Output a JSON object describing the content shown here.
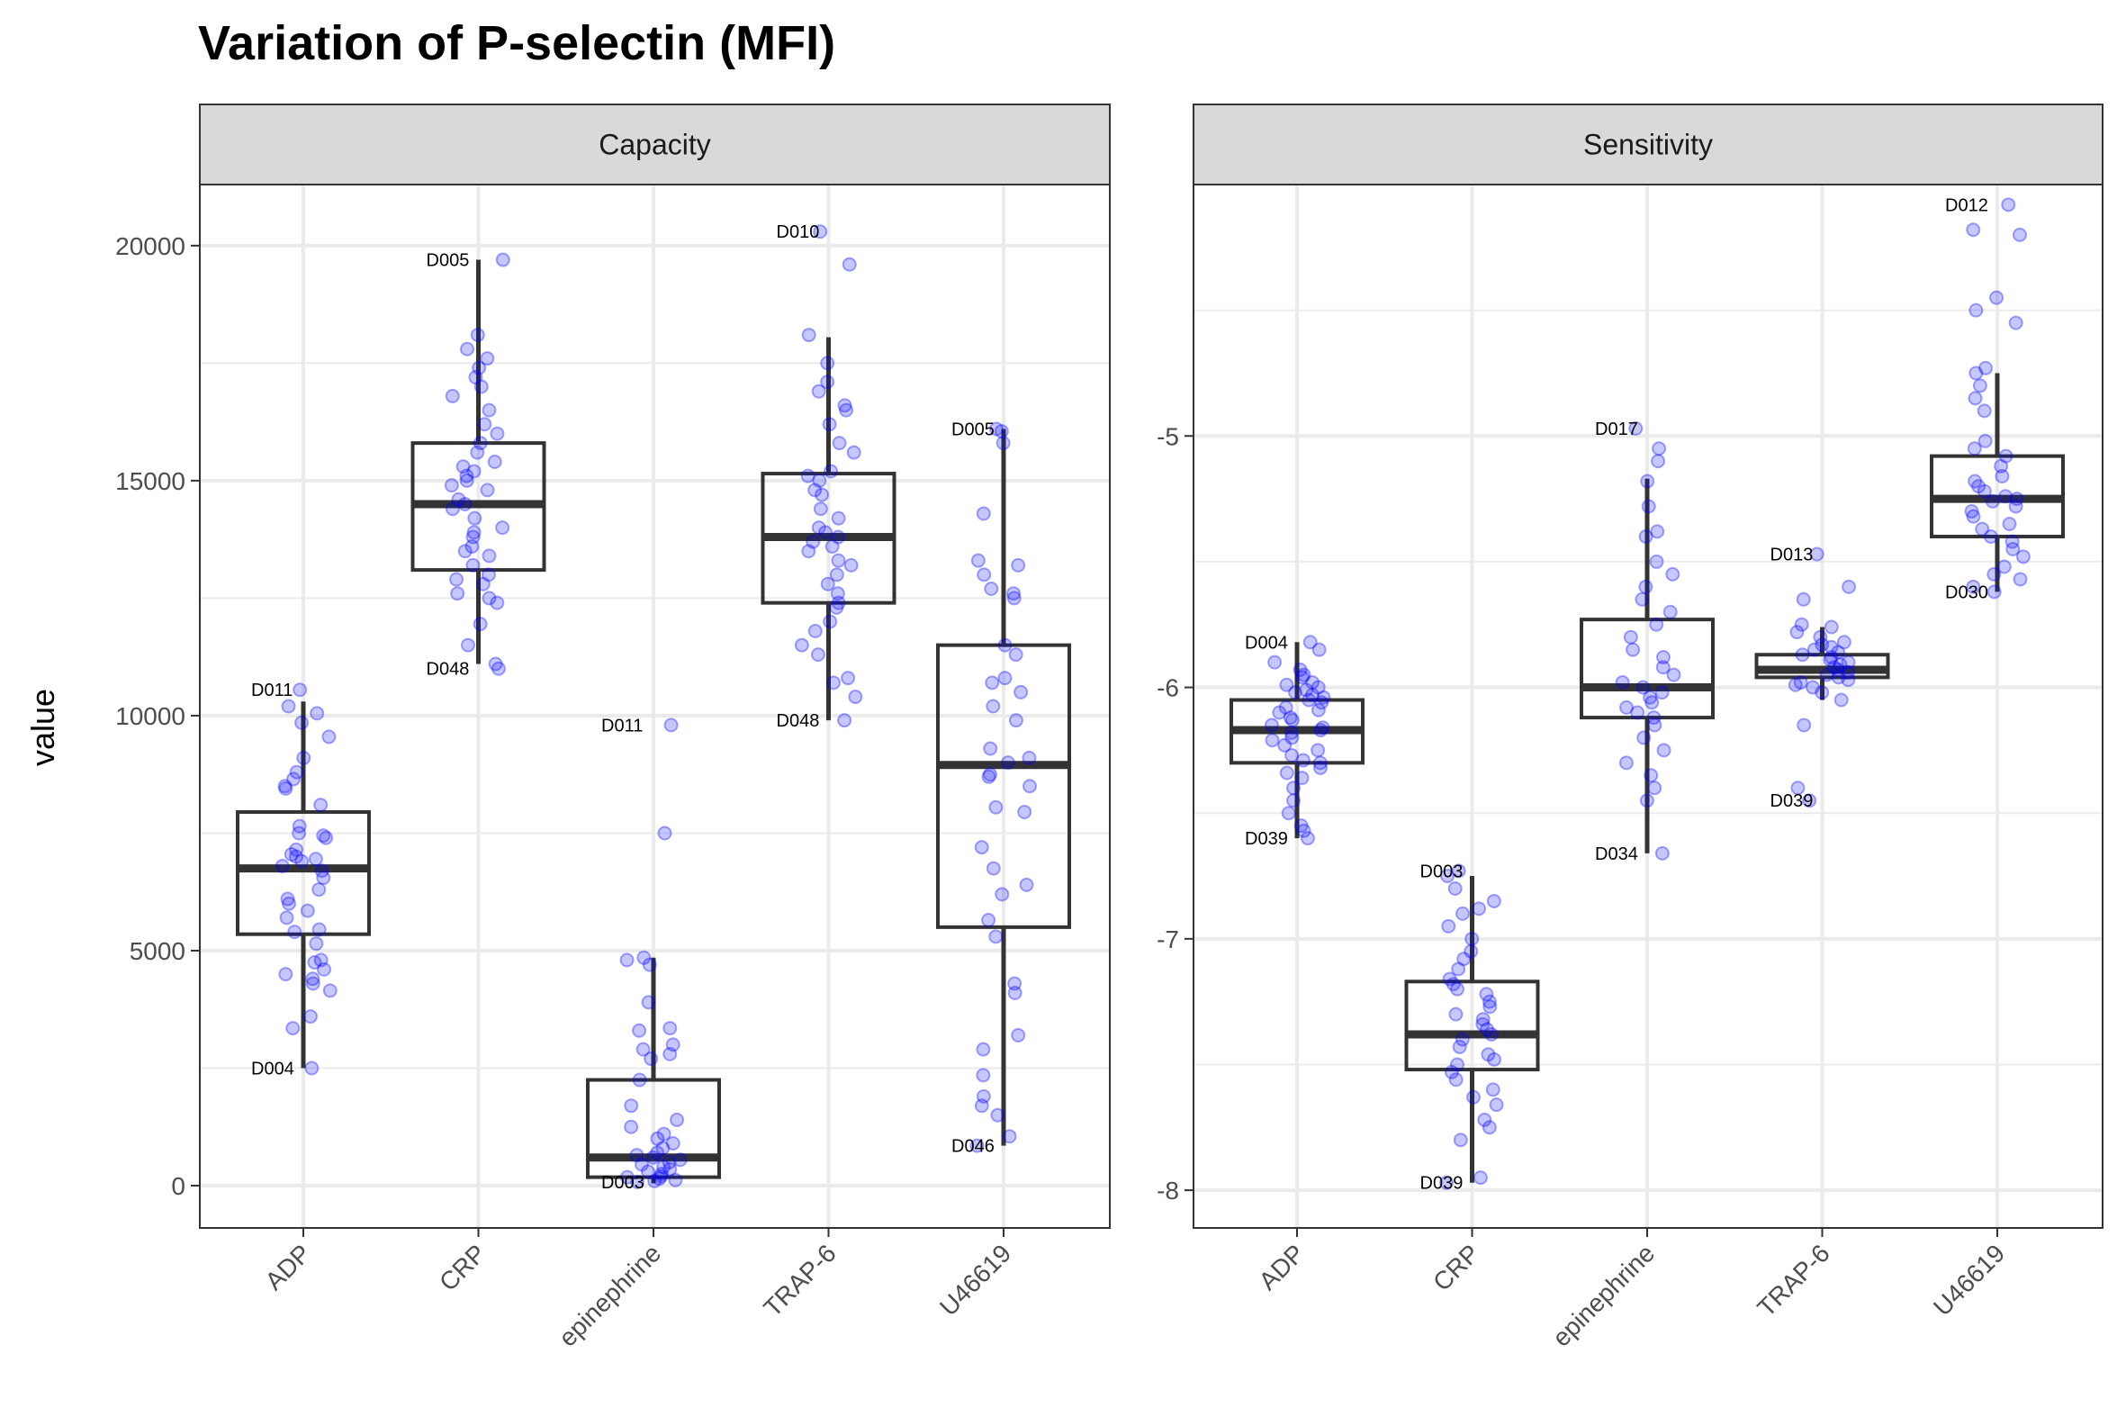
{
  "chart_data": {
    "type": "box",
    "title": "Variation of P-selectin (MFI)",
    "xlabel": "",
    "ylabel": "value",
    "categories": [
      "ADP",
      "CRP",
      "epinephrine",
      "TRAP-6",
      "U46619"
    ],
    "colors": {
      "points": "#0000ff",
      "box": "#333333",
      "grid": "#ebebeb",
      "strip": "#d9d9d9",
      "border": "#333333"
    },
    "grid": true,
    "facets": [
      {
        "name": "Capacity",
        "ylim": [
          -900,
          21300
        ],
        "yticks": [
          0,
          5000,
          10000,
          15000,
          20000
        ],
        "yticklabels": [
          "0",
          "5000",
          "10000",
          "15000",
          "20000"
        ],
        "boxes": [
          {
            "category": "ADP",
            "q1": 5350,
            "median": 6750,
            "q3": 7950,
            "whisker_low": 2500,
            "whisker_high": 10300,
            "points": [
              2500,
              3350,
              3600,
              4150,
              4300,
              4400,
              4500,
              4600,
              4750,
              4800,
              5150,
              5400,
              5450,
              5700,
              5850,
              6000,
              6100,
              6300,
              6550,
              6700,
              6800,
              6900,
              6950,
              7000,
              7050,
              7150,
              7400,
              7450,
              7500,
              7650,
              8100,
              8450,
              8500,
              8650,
              8800,
              9100,
              9550,
              9850,
              10050,
              10200,
              10550
            ]
          },
          {
            "category": "CRP",
            "q1": 13100,
            "median": 14500,
            "q3": 15800,
            "whisker_low": 11100,
            "whisker_high": 19700,
            "points": [
              11000,
              11100,
              11500,
              11950,
              12400,
              12500,
              12600,
              12800,
              12900,
              13000,
              13200,
              13400,
              13500,
              13600,
              13800,
              13900,
              14000,
              14200,
              14400,
              14500,
              14600,
              14800,
              14900,
              15000,
              15100,
              15200,
              15300,
              15400,
              15600,
              15800,
              16000,
              16200,
              16500,
              16800,
              17000,
              17200,
              17400,
              17600,
              17800,
              18100,
              19700
            ]
          },
          {
            "category": "epinephrine",
            "q1": 180,
            "median": 600,
            "q3": 2250,
            "whisker_low": 50,
            "whisker_high": 4850,
            "points": [
              80,
              100,
              120,
              150,
              180,
              200,
              250,
              300,
              350,
              400,
              450,
              500,
              550,
              600,
              650,
              700,
              800,
              900,
              1000,
              1100,
              1250,
              1400,
              1700,
              2250,
              2700,
              2800,
              2900,
              3000,
              3300,
              3350,
              3900,
              4700,
              4800,
              4850,
              7500,
              9800
            ]
          },
          {
            "category": "TRAP-6",
            "q1": 12400,
            "median": 13800,
            "q3": 15150,
            "whisker_low": 9900,
            "whisker_high": 18050,
            "points": [
              9900,
              10400,
              10700,
              10800,
              11300,
              11500,
              11800,
              12000,
              12300,
              12400,
              12600,
              12800,
              13000,
              13200,
              13300,
              13500,
              13600,
              13700,
              13800,
              13900,
              14000,
              14200,
              14400,
              14700,
              14800,
              15000,
              15100,
              15200,
              15600,
              15800,
              16200,
              16500,
              16600,
              16900,
              17100,
              17500,
              18100,
              19600,
              20300
            ]
          },
          {
            "category": "U46619",
            "q1": 5500,
            "median": 8950,
            "q3": 11500,
            "whisker_low": 850,
            "whisker_high": 16100,
            "points": [
              850,
              1050,
              1500,
              1700,
              1900,
              2350,
              2900,
              3200,
              4100,
              4300,
              5300,
              5650,
              6200,
              6400,
              6750,
              7200,
              7950,
              8050,
              8500,
              8700,
              8750,
              9000,
              9100,
              9300,
              9900,
              10200,
              10500,
              10700,
              10800,
              11300,
              11500,
              12500,
              12600,
              12700,
              13000,
              13200,
              13300,
              14300,
              15800,
              16050,
              16100
            ]
          }
        ],
        "labels": [
          {
            "category": "ADP",
            "value": 10550,
            "text": "D011"
          },
          {
            "category": "ADP",
            "value": 2500,
            "text": "D004"
          },
          {
            "category": "CRP",
            "value": 19700,
            "text": "D005"
          },
          {
            "category": "CRP",
            "value": 11000,
            "text": "D048"
          },
          {
            "category": "epinephrine",
            "value": 9800,
            "text": "D011"
          },
          {
            "category": "epinephrine",
            "value": 80,
            "text": "D003"
          },
          {
            "category": "TRAP-6",
            "value": 20300,
            "text": "D010"
          },
          {
            "category": "TRAP-6",
            "value": 9900,
            "text": "D048"
          },
          {
            "category": "U46619",
            "value": 16100,
            "text": "D005"
          },
          {
            "category": "U46619",
            "value": 850,
            "text": "D046"
          }
        ]
      },
      {
        "name": "Sensitivity",
        "ylim": [
          -8.15,
          -4.0
        ],
        "yticks": [
          -8,
          -7,
          -6,
          -5
        ],
        "yticklabels": [
          "-8",
          "-7",
          "-6",
          "-5"
        ],
        "boxes": [
          {
            "category": "ADP",
            "q1": -6.3,
            "median": -6.17,
            "q3": -6.05,
            "whisker_low": -6.6,
            "whisker_high": -5.82,
            "points": [
              -6.6,
              -6.57,
              -6.55,
              -6.5,
              -6.45,
              -6.4,
              -6.36,
              -6.34,
              -6.32,
              -6.3,
              -6.29,
              -6.27,
              -6.25,
              -6.23,
              -6.21,
              -6.2,
              -6.18,
              -6.17,
              -6.16,
              -6.15,
              -6.13,
              -6.12,
              -6.1,
              -6.09,
              -6.08,
              -6.06,
              -6.05,
              -6.04,
              -6.03,
              -6.02,
              -6.01,
              -6.0,
              -5.99,
              -5.98,
              -5.96,
              -5.95,
              -5.93,
              -5.9,
              -5.85,
              -5.82
            ]
          },
          {
            "category": "CRP",
            "q1": -7.52,
            "median": -7.38,
            "q3": -7.17,
            "whisker_low": -7.97,
            "whisker_high": -6.75,
            "points": [
              -7.97,
              -7.95,
              -7.8,
              -7.75,
              -7.72,
              -7.66,
              -7.63,
              -7.6,
              -7.56,
              -7.53,
              -7.5,
              -7.48,
              -7.46,
              -7.43,
              -7.4,
              -7.38,
              -7.36,
              -7.34,
              -7.32,
              -7.3,
              -7.27,
              -7.25,
              -7.22,
              -7.2,
              -7.18,
              -7.16,
              -7.12,
              -7.08,
              -7.05,
              -7.0,
              -6.95,
              -6.9,
              -6.88,
              -6.85,
              -6.8,
              -6.75,
              -6.73
            ]
          },
          {
            "category": "epinephrine",
            "q1": -6.12,
            "median": -6.0,
            "q3": -5.73,
            "whisker_low": -6.66,
            "whisker_high": -5.17,
            "points": [
              -6.66,
              -6.45,
              -6.4,
              -6.35,
              -6.3,
              -6.25,
              -6.2,
              -6.15,
              -6.12,
              -6.1,
              -6.08,
              -6.06,
              -6.04,
              -6.02,
              -6.0,
              -5.98,
              -5.95,
              -5.92,
              -5.88,
              -5.85,
              -5.8,
              -5.75,
              -5.7,
              -5.65,
              -5.6,
              -5.55,
              -5.5,
              -5.4,
              -5.38,
              -5.28,
              -5.18,
              -5.1,
              -5.05,
              -4.97
            ]
          },
          {
            "category": "TRAP-6",
            "q1": -5.96,
            "median": -5.93,
            "q3": -5.87,
            "whisker_low": -6.05,
            "whisker_high": -5.76,
            "points": [
              -6.45,
              -6.4,
              -6.15,
              -6.05,
              -6.02,
              -6.0,
              -5.99,
              -5.98,
              -5.97,
              -5.96,
              -5.95,
              -5.94,
              -5.93,
              -5.92,
              -5.91,
              -5.9,
              -5.89,
              -5.88,
              -5.87,
              -5.86,
              -5.85,
              -5.84,
              -5.83,
              -5.82,
              -5.8,
              -5.78,
              -5.76,
              -5.75,
              -5.65,
              -5.6,
              -5.47
            ]
          },
          {
            "category": "U46619",
            "q1": -5.4,
            "median": -5.25,
            "q3": -5.08,
            "whisker_low": -5.62,
            "whisker_high": -4.75,
            "points": [
              -5.62,
              -5.6,
              -5.57,
              -5.55,
              -5.52,
              -5.48,
              -5.45,
              -5.42,
              -5.4,
              -5.37,
              -5.35,
              -5.32,
              -5.3,
              -5.28,
              -5.26,
              -5.25,
              -5.24,
              -5.22,
              -5.2,
              -5.18,
              -5.16,
              -5.12,
              -5.08,
              -5.05,
              -5.02,
              -4.9,
              -4.85,
              -4.8,
              -4.75,
              -4.73,
              -4.55,
              -4.5,
              -4.45,
              -4.2,
              -4.18,
              -4.08
            ]
          }
        ],
        "labels": [
          {
            "category": "ADP",
            "value": -5.82,
            "text": "D004"
          },
          {
            "category": "ADP",
            "value": -6.6,
            "text": "D039"
          },
          {
            "category": "CRP",
            "value": -6.73,
            "text": "D003"
          },
          {
            "category": "CRP",
            "value": -7.97,
            "text": "D039"
          },
          {
            "category": "epinephrine",
            "value": -4.97,
            "text": "D017"
          },
          {
            "category": "epinephrine",
            "value": -6.66,
            "text": "D034"
          },
          {
            "category": "TRAP-6",
            "value": -5.47,
            "text": "D013"
          },
          {
            "category": "TRAP-6",
            "value": -6.45,
            "text": "D039"
          },
          {
            "category": "U46619",
            "value": -4.08,
            "text": "D012"
          },
          {
            "category": "U46619",
            "value": -5.62,
            "text": "D030"
          }
        ]
      }
    ]
  }
}
